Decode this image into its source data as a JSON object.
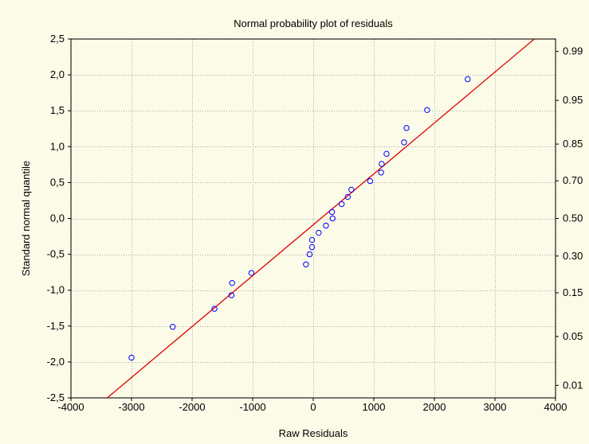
{
  "chart_data": {
    "type": "scatter",
    "title": "Normal probability plot of residuals",
    "xlabel": "Raw Residuals",
    "ylabel": "Standard normal quantile",
    "xlim": [
      -4000,
      4000
    ],
    "ylim": [
      -2.5,
      2.5
    ],
    "x_ticks": [
      -4000,
      -3000,
      -2000,
      -1000,
      0,
      1000,
      2000,
      3000,
      4000
    ],
    "x_tick_labels": [
      "-4000",
      "-3000",
      "-2000",
      "-1000",
      "0",
      "1000",
      "2000",
      "3000",
      "4000"
    ],
    "y_ticks": [
      -2.5,
      -2.0,
      -1.5,
      -1.0,
      -0.5,
      0.0,
      0.5,
      1.0,
      1.5,
      2.0,
      2.5
    ],
    "y_tick_labels": [
      "-2,5",
      "-2,0",
      "-1,5",
      "-1,0",
      "-0,5",
      "0,0",
      "0,5",
      "1,0",
      "1,5",
      "2,0",
      "2,5"
    ],
    "right_axis_labels": [
      {
        "value": -2.326,
        "label": "0.01"
      },
      {
        "value": -1.645,
        "label": "0.05"
      },
      {
        "value": -1.036,
        "label": "0.15"
      },
      {
        "value": -0.524,
        "label": "0.30"
      },
      {
        "value": 0.0,
        "label": "0.50"
      },
      {
        "value": 0.524,
        "label": "0.70"
      },
      {
        "value": 1.036,
        "label": "0.85"
      },
      {
        "value": 1.645,
        "label": "0.95"
      },
      {
        "value": 2.326,
        "label": "0.99"
      }
    ],
    "grid": true,
    "series": [
      {
        "marker": "circle",
        "color": "#0000ff",
        "points": [
          [
            -3000,
            -1.94
          ],
          [
            -2320,
            -1.51
          ],
          [
            -1630,
            -1.26
          ],
          [
            -1350,
            -1.07
          ],
          [
            -1340,
            -0.9
          ],
          [
            -1020,
            -0.76
          ],
          [
            -120,
            -0.64
          ],
          [
            -60,
            -0.5
          ],
          [
            -20,
            -0.4
          ],
          [
            -20,
            -0.3
          ],
          [
            90,
            -0.2
          ],
          [
            210,
            -0.1
          ],
          [
            320,
            0.0
          ],
          [
            310,
            0.09
          ],
          [
            470,
            0.2
          ],
          [
            570,
            0.3
          ],
          [
            630,
            0.4
          ],
          [
            940,
            0.52
          ],
          [
            1120,
            0.64
          ],
          [
            1130,
            0.76
          ],
          [
            1210,
            0.9
          ],
          [
            1500,
            1.06
          ],
          [
            1540,
            1.26
          ],
          [
            1880,
            1.51
          ],
          [
            2550,
            1.94
          ]
        ]
      }
    ],
    "reference_line": {
      "color": "#e00000",
      "points": [
        [
          -3400,
          -2.5
        ],
        [
          3650,
          2.5
        ]
      ]
    }
  }
}
